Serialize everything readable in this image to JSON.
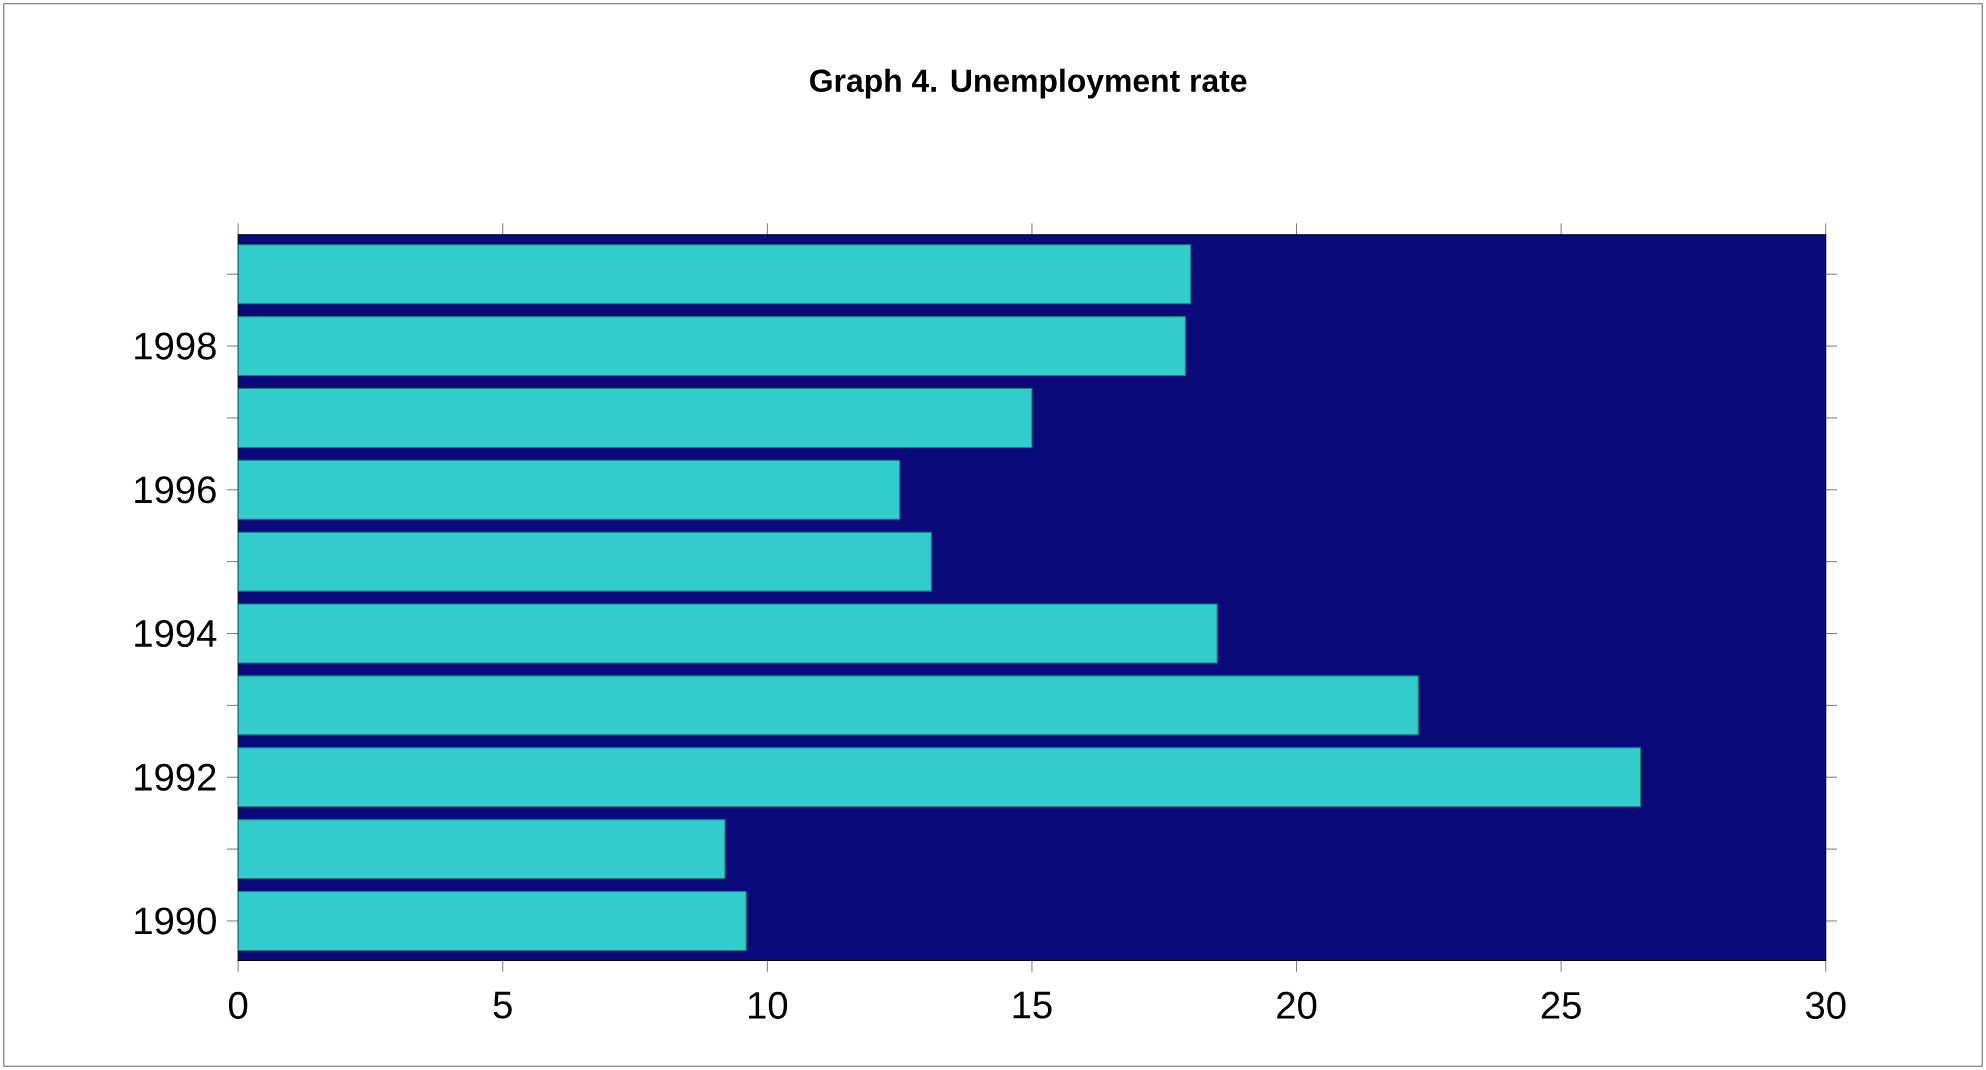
{
  "chart_data": {
    "type": "bar",
    "orientation": "horizontal",
    "title": "Graph 4. Unemployment rate",
    "categories": [
      null,
      "1998",
      null,
      "1996",
      null,
      "1994",
      null,
      "1992",
      null,
      "1990"
    ],
    "values": [
      18.0,
      17.9,
      15.0,
      12.5,
      13.1,
      18.5,
      22.3,
      26.5,
      9.2,
      9.6
    ],
    "color": "#33cccc",
    "xlim": [
      0,
      30
    ],
    "xticks": [
      0,
      5,
      10,
      15,
      20,
      25,
      30
    ]
  }
}
